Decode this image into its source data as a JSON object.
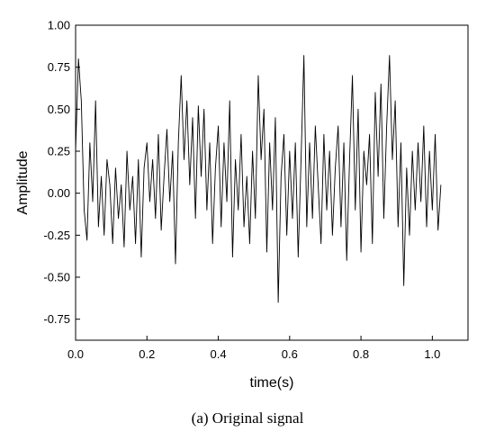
{
  "chart_data": {
    "type": "line",
    "xlabel": "time(s)",
    "ylabel": "Amplitude",
    "caption": "(a) Original signal",
    "xlim": [
      0,
      1.1
    ],
    "ylim": [
      -0.875,
      1.0
    ],
    "xticks": [
      {
        "value": 0,
        "label": "0.0"
      },
      {
        "value": 0.2,
        "label": "0.2"
      },
      {
        "value": 0.4,
        "label": "0.4"
      },
      {
        "value": 0.6,
        "label": "0.6"
      },
      {
        "value": 0.8,
        "label": "0.8"
      },
      {
        "value": 1,
        "label": "1.0"
      }
    ],
    "yticks": [
      {
        "value": 1,
        "label": "1.00"
      },
      {
        "value": 0.75,
        "label": "0.75"
      },
      {
        "value": 0.5,
        "label": "0.50"
      },
      {
        "value": 0.25,
        "label": "0.25"
      },
      {
        "value": 0,
        "label": "0.00"
      },
      {
        "value": -0.25,
        "label": "-0.25"
      },
      {
        "value": -0.5,
        "label": "-0.50"
      },
      {
        "value": -0.75,
        "label": "-0.75"
      }
    ],
    "x": [
      0.0,
      0.008,
      0.016,
      0.024,
      0.032,
      0.04,
      0.048,
      0.056,
      0.064,
      0.072,
      0.08,
      0.088,
      0.096,
      0.104,
      0.112,
      0.12,
      0.128,
      0.136,
      0.144,
      0.152,
      0.16,
      0.168,
      0.176,
      0.184,
      0.192,
      0.2,
      0.208,
      0.216,
      0.224,
      0.232,
      0.24,
      0.248,
      0.256,
      0.264,
      0.272,
      0.28,
      0.288,
      0.296,
      0.304,
      0.312,
      0.32,
      0.328,
      0.336,
      0.344,
      0.352,
      0.36,
      0.368,
      0.376,
      0.384,
      0.392,
      0.4,
      0.408,
      0.416,
      0.424,
      0.432,
      0.44,
      0.448,
      0.456,
      0.464,
      0.472,
      0.48,
      0.488,
      0.496,
      0.504,
      0.512,
      0.52,
      0.528,
      0.536,
      0.544,
      0.552,
      0.56,
      0.568,
      0.576,
      0.584,
      0.592,
      0.6,
      0.608,
      0.616,
      0.624,
      0.632,
      0.64,
      0.648,
      0.656,
      0.664,
      0.672,
      0.68,
      0.688,
      0.696,
      0.704,
      0.712,
      0.72,
      0.728,
      0.736,
      0.744,
      0.752,
      0.76,
      0.768,
      0.776,
      0.784,
      0.792,
      0.8,
      0.808,
      0.816,
      0.824,
      0.832,
      0.84,
      0.848,
      0.856,
      0.864,
      0.872,
      0.88,
      0.888,
      0.896,
      0.904,
      0.912,
      0.92,
      0.928,
      0.936,
      0.944,
      0.952,
      0.96,
      0.968,
      0.976,
      0.984,
      0.992,
      1.0,
      1.008,
      1.016,
      1.024
    ],
    "series": [
      {
        "color": "#000000",
        "values": [
          0.25,
          0.8,
          0.55,
          -0.1,
          -0.28,
          0.3,
          -0.05,
          0.55,
          -0.2,
          0.1,
          -0.25,
          0.2,
          0.05,
          -0.3,
          0.15,
          -0.15,
          0.05,
          -0.32,
          0.25,
          -0.1,
          0.1,
          -0.3,
          0.2,
          -0.38,
          0.15,
          0.3,
          -0.05,
          0.2,
          -0.15,
          0.35,
          -0.22,
          0.1,
          0.38,
          -0.05,
          0.25,
          -0.42,
          0.3,
          0.7,
          0.2,
          0.55,
          0.05,
          0.45,
          -0.15,
          0.52,
          0.1,
          0.5,
          -0.1,
          0.3,
          -0.3,
          0.15,
          0.4,
          -0.2,
          0.3,
          -0.05,
          0.55,
          -0.38,
          0.2,
          -0.1,
          0.35,
          -0.2,
          0.1,
          -0.3,
          0.25,
          -0.15,
          0.7,
          0.2,
          0.5,
          -0.35,
          0.3,
          -0.1,
          0.45,
          -0.65,
          0.1,
          0.35,
          -0.25,
          0.25,
          -0.15,
          0.3,
          -0.38,
          0.2,
          0.82,
          -0.2,
          0.3,
          -0.15,
          0.4,
          0.05,
          -0.3,
          0.35,
          -0.1,
          0.25,
          -0.25,
          0.15,
          0.4,
          -0.2,
          0.3,
          -0.4,
          0.2,
          0.7,
          -0.1,
          0.5,
          -0.35,
          0.25,
          0.05,
          0.35,
          -0.3,
          0.6,
          0.1,
          0.65,
          -0.15,
          0.4,
          0.82,
          0.2,
          0.55,
          -0.2,
          0.3,
          -0.55,
          0.15,
          -0.25,
          0.25,
          -0.1,
          0.3,
          -0.05,
          0.4,
          -0.2,
          0.25,
          -0.1,
          0.35,
          -0.22,
          0.05
        ]
      }
    ]
  }
}
